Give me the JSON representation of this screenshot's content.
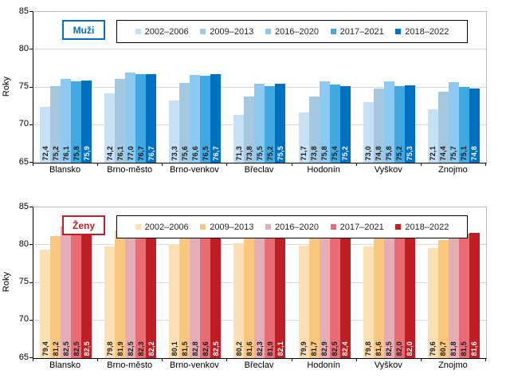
{
  "chart_data": [
    {
      "type": "bar",
      "title_badge": "Muži",
      "badge_color": "#0070C0",
      "ylabel": "Roky",
      "ylim": [
        65,
        85
      ],
      "yticks": [
        65,
        70,
        75,
        80,
        85
      ],
      "grid": true,
      "legend_position": "top",
      "legend_text_color": "#262626",
      "categories": [
        "Blansko",
        "Brno-město",
        "Brno-venkov",
        "Břeclav",
        "Hodonín",
        "Vyškov",
        "Znojmo"
      ],
      "series": [
        {
          "name": "2002–2006",
          "color": "#C6E0F4",
          "values": [
            72.4,
            74.2,
            73.3,
            71.3,
            71.7,
            73.0,
            72.1
          ]
        },
        {
          "name": "2009–2013",
          "color": "#A5C8E1",
          "values": [
            75.2,
            76.1,
            75.6,
            73.8,
            73.8,
            74.8,
            74.4
          ]
        },
        {
          "name": "2016–2020",
          "color": "#8DC9F1",
          "values": [
            76.1,
            77.0,
            76.6,
            75.5,
            75.8,
            75.8,
            75.7
          ]
        },
        {
          "name": "2017–2021",
          "color": "#41A9E1",
          "values": [
            75.8,
            76.7,
            76.5,
            75.2,
            75.4,
            75.2,
            75.1
          ]
        },
        {
          "name": "2018–2022",
          "color": "#0070C0",
          "values": [
            75.9,
            76.7,
            76.7,
            75.5,
            75.2,
            75.3,
            74.8
          ],
          "label_color": "#FFFFFF"
        }
      ]
    },
    {
      "type": "bar",
      "title_badge": "Ženy",
      "badge_color": "#BE1E24",
      "ylabel": "Roky",
      "ylim": [
        65,
        85
      ],
      "yticks": [
        65,
        70,
        75,
        80,
        85
      ],
      "grid": true,
      "legend_position": "top",
      "legend_text_color": "#262626",
      "categories": [
        "Blansko",
        "Brno-město",
        "Brno-venkov",
        "Břeclav",
        "Hodonín",
        "Vyškov",
        "Znojmo"
      ],
      "series": [
        {
          "name": "2002–2006",
          "color": "#FCE0B4",
          "values": [
            79.4,
            79.8,
            80.1,
            80.2,
            79.9,
            79.8,
            79.6
          ]
        },
        {
          "name": "2009–2013",
          "color": "#F9C87E",
          "values": [
            81.2,
            81.9,
            81.5,
            81.6,
            81.7,
            81.6,
            80.7
          ]
        },
        {
          "name": "2016–2020",
          "color": "#E5AEB6",
          "values": [
            82.5,
            82.5,
            82.8,
            82.3,
            82.9,
            82.5,
            81.8
          ]
        },
        {
          "name": "2017–2021",
          "color": "#E96B74",
          "values": [
            82.5,
            82.3,
            82.6,
            81.9,
            82.5,
            82.0,
            81.5
          ]
        },
        {
          "name": "2018–2022",
          "color": "#BE1E24",
          "values": [
            82.5,
            82.2,
            82.5,
            82.1,
            82.4,
            82.0,
            81.6
          ],
          "label_color": "#FFFFFF"
        }
      ]
    }
  ]
}
